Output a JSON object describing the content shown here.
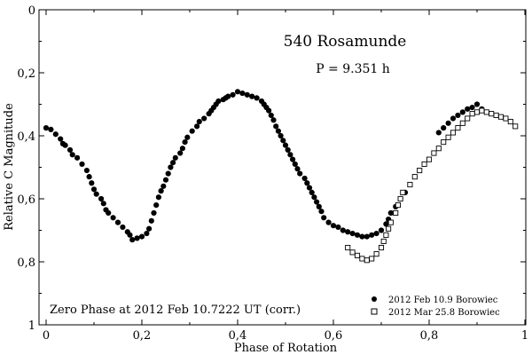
{
  "chart_data": {
    "type": "scatter",
    "title": "540 Rosamunde",
    "subtitle": "P = 9.351 h",
    "xlabel": "Phase of Rotation",
    "ylabel": "Relative C Magnitude",
    "xlim": [
      0,
      1
    ],
    "ylim": [
      0,
      1
    ],
    "y_inverted": true,
    "grid": false,
    "x_ticks": [
      0,
      0.2,
      0.4,
      0.6,
      0.8,
      1
    ],
    "x_tick_labels": [
      "0",
      "0,2",
      "0,4",
      "0,6",
      "0,8",
      "1"
    ],
    "y_ticks": [
      0,
      0.2,
      0.4,
      0.6,
      0.8,
      1
    ],
    "y_tick_labels": [
      "0",
      "0,2",
      "0,4",
      "0,6",
      "0,8",
      "1"
    ],
    "annotation": "Zero Phase at 2012 Feb 10.7222 UT (corr.)",
    "legend_position": "bottom-right",
    "series": [
      {
        "name": "2012 Feb 10.9 Borowiec",
        "marker": "filled-circle",
        "color": "#000000",
        "points": [
          [
            0.0,
            0.375
          ],
          [
            0.01,
            0.38
          ],
          [
            0.02,
            0.395
          ],
          [
            0.03,
            0.41
          ],
          [
            0.035,
            0.425
          ],
          [
            0.04,
            0.43
          ],
          [
            0.05,
            0.445
          ],
          [
            0.055,
            0.46
          ],
          [
            0.065,
            0.47
          ],
          [
            0.075,
            0.49
          ],
          [
            0.085,
            0.51
          ],
          [
            0.09,
            0.53
          ],
          [
            0.095,
            0.55
          ],
          [
            0.1,
            0.57
          ],
          [
            0.105,
            0.585
          ],
          [
            0.115,
            0.6
          ],
          [
            0.12,
            0.615
          ],
          [
            0.125,
            0.635
          ],
          [
            0.13,
            0.645
          ],
          [
            0.14,
            0.66
          ],
          [
            0.15,
            0.675
          ],
          [
            0.16,
            0.69
          ],
          [
            0.17,
            0.705
          ],
          [
            0.175,
            0.715
          ],
          [
            0.18,
            0.73
          ],
          [
            0.19,
            0.725
          ],
          [
            0.2,
            0.72
          ],
          [
            0.21,
            0.71
          ],
          [
            0.215,
            0.695
          ],
          [
            0.22,
            0.67
          ],
          [
            0.225,
            0.645
          ],
          [
            0.23,
            0.62
          ],
          [
            0.235,
            0.595
          ],
          [
            0.24,
            0.575
          ],
          [
            0.245,
            0.56
          ],
          [
            0.25,
            0.54
          ],
          [
            0.255,
            0.52
          ],
          [
            0.26,
            0.5
          ],
          [
            0.265,
            0.485
          ],
          [
            0.27,
            0.47
          ],
          [
            0.28,
            0.455
          ],
          [
            0.285,
            0.44
          ],
          [
            0.29,
            0.42
          ],
          [
            0.295,
            0.405
          ],
          [
            0.305,
            0.385
          ],
          [
            0.315,
            0.37
          ],
          [
            0.32,
            0.355
          ],
          [
            0.33,
            0.345
          ],
          [
            0.34,
            0.33
          ],
          [
            0.345,
            0.32
          ],
          [
            0.35,
            0.31
          ],
          [
            0.355,
            0.3
          ],
          [
            0.36,
            0.29
          ],
          [
            0.37,
            0.285
          ],
          [
            0.375,
            0.28
          ],
          [
            0.38,
            0.275
          ],
          [
            0.39,
            0.27
          ],
          [
            0.4,
            0.26
          ],
          [
            0.41,
            0.265
          ],
          [
            0.42,
            0.27
          ],
          [
            0.43,
            0.275
          ],
          [
            0.44,
            0.28
          ],
          [
            0.45,
            0.29
          ],
          [
            0.455,
            0.3
          ],
          [
            0.46,
            0.31
          ],
          [
            0.465,
            0.32
          ],
          [
            0.47,
            0.335
          ],
          [
            0.475,
            0.35
          ],
          [
            0.48,
            0.37
          ],
          [
            0.485,
            0.385
          ],
          [
            0.49,
            0.4
          ],
          [
            0.495,
            0.415
          ],
          [
            0.5,
            0.43
          ],
          [
            0.505,
            0.445
          ],
          [
            0.51,
            0.46
          ],
          [
            0.515,
            0.475
          ],
          [
            0.52,
            0.49
          ],
          [
            0.525,
            0.505
          ],
          [
            0.53,
            0.52
          ],
          [
            0.54,
            0.535
          ],
          [
            0.545,
            0.55
          ],
          [
            0.55,
            0.565
          ],
          [
            0.555,
            0.58
          ],
          [
            0.56,
            0.595
          ],
          [
            0.565,
            0.61
          ],
          [
            0.57,
            0.625
          ],
          [
            0.575,
            0.64
          ],
          [
            0.58,
            0.66
          ],
          [
            0.59,
            0.675
          ],
          [
            0.6,
            0.685
          ],
          [
            0.61,
            0.69
          ],
          [
            0.62,
            0.7
          ],
          [
            0.63,
            0.705
          ],
          [
            0.64,
            0.71
          ],
          [
            0.65,
            0.715
          ],
          [
            0.66,
            0.72
          ],
          [
            0.67,
            0.72
          ],
          [
            0.68,
            0.715
          ],
          [
            0.69,
            0.71
          ],
          [
            0.7,
            0.7
          ],
          [
            0.71,
            0.68
          ],
          [
            0.715,
            0.665
          ],
          [
            0.72,
            0.645
          ],
          [
            0.73,
            0.625
          ],
          [
            0.74,
            0.6
          ],
          [
            0.75,
            0.58
          ],
          [
            0.82,
            0.39
          ],
          [
            0.83,
            0.375
          ],
          [
            0.84,
            0.36
          ],
          [
            0.85,
            0.345
          ],
          [
            0.86,
            0.335
          ],
          [
            0.87,
            0.325
          ],
          [
            0.88,
            0.315
          ],
          [
            0.89,
            0.31
          ],
          [
            0.9,
            0.3
          ],
          [
            0.91,
            0.315
          ]
        ]
      },
      {
        "name": "2012 Mar 25.8 Borowiec",
        "marker": "open-square",
        "color": "#000000",
        "points": [
          [
            0.63,
            0.755
          ],
          [
            0.64,
            0.77
          ],
          [
            0.65,
            0.78
          ],
          [
            0.66,
            0.79
          ],
          [
            0.67,
            0.795
          ],
          [
            0.68,
            0.79
          ],
          [
            0.69,
            0.775
          ],
          [
            0.7,
            0.755
          ],
          [
            0.705,
            0.735
          ],
          [
            0.71,
            0.715
          ],
          [
            0.715,
            0.695
          ],
          [
            0.72,
            0.675
          ],
          [
            0.73,
            0.645
          ],
          [
            0.735,
            0.62
          ],
          [
            0.74,
            0.6
          ],
          [
            0.745,
            0.58
          ],
          [
            0.76,
            0.555
          ],
          [
            0.77,
            0.53
          ],
          [
            0.78,
            0.51
          ],
          [
            0.79,
            0.49
          ],
          [
            0.8,
            0.475
          ],
          [
            0.81,
            0.455
          ],
          [
            0.82,
            0.44
          ],
          [
            0.83,
            0.42
          ],
          [
            0.84,
            0.405
          ],
          [
            0.85,
            0.39
          ],
          [
            0.86,
            0.375
          ],
          [
            0.87,
            0.36
          ],
          [
            0.88,
            0.345
          ],
          [
            0.89,
            0.33
          ],
          [
            0.9,
            0.325
          ],
          [
            0.91,
            0.32
          ],
          [
            0.92,
            0.325
          ],
          [
            0.93,
            0.33
          ],
          [
            0.94,
            0.335
          ],
          [
            0.95,
            0.34
          ],
          [
            0.96,
            0.345
          ],
          [
            0.97,
            0.355
          ],
          [
            0.98,
            0.37
          ]
        ]
      }
    ]
  }
}
